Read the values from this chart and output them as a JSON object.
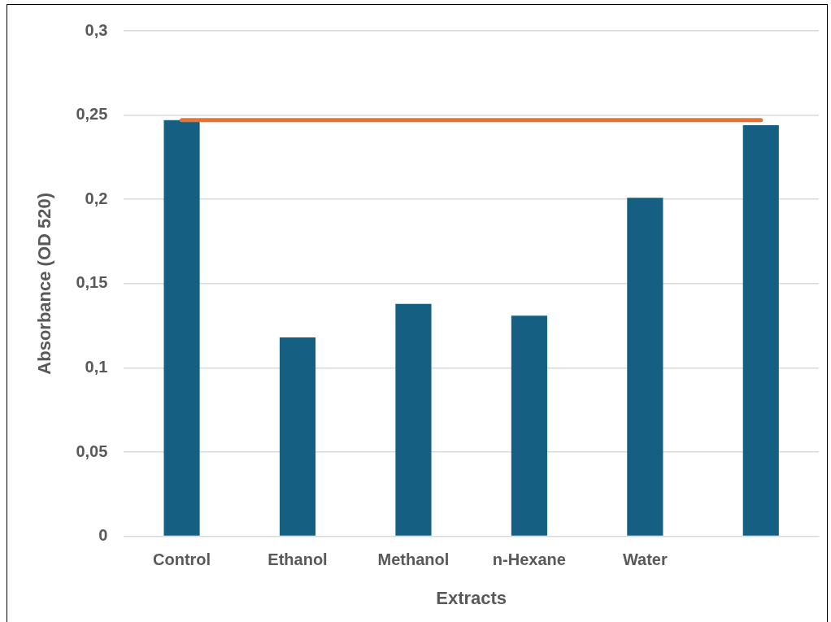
{
  "chart_data": {
    "type": "bar",
    "xlabel": "Extracts",
    "ylabel": "Absorbance (OD 520)",
    "categories": [
      "Control",
      "Ethanol",
      "Methanol",
      "n-Hexane",
      "Water",
      null
    ],
    "series": [
      {
        "color": "#156082",
        "values": [
          0.247,
          0.118,
          0.138,
          0.131,
          0.201,
          0.244
        ]
      },
      {
        "type": "line",
        "color": "#e97132",
        "values": [
          0.247,
          0.247,
          0.247,
          0.247,
          0.247,
          0.247
        ]
      }
    ],
    "ylim": [
      0,
      0.3
    ],
    "yticks": [
      0,
      {
        "value": 0.05,
        "label": "0,05"
      },
      {
        "value": 0.1,
        "label": "0,1"
      },
      {
        "value": 0.15,
        "label": "0,15"
      },
      {
        "value": 0.2,
        "label": "0,2"
      },
      {
        "value": 0.25,
        "label": "0,25"
      },
      {
        "value": 0.3,
        "label": "0,3"
      }
    ],
    "grid": "y",
    "legend": false
  }
}
